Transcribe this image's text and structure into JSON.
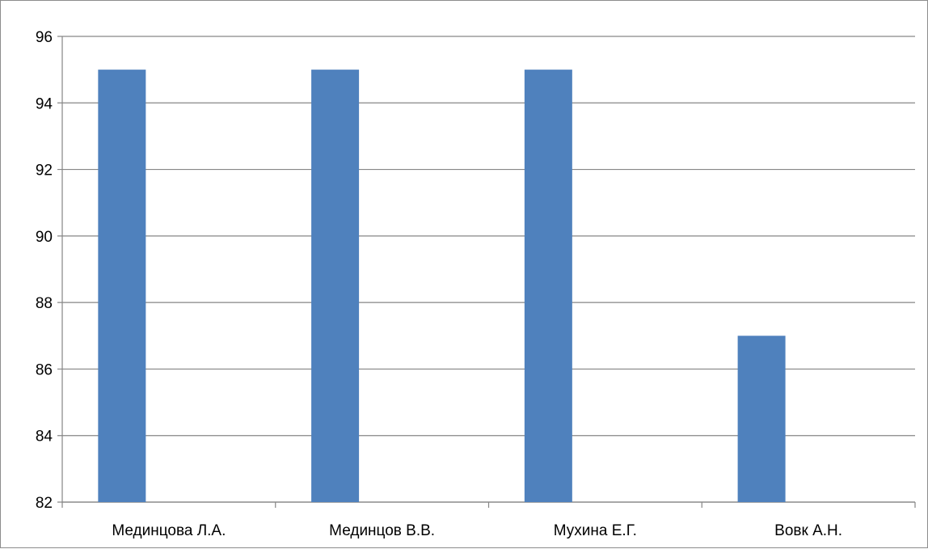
{
  "chart_data": {
    "type": "bar",
    "categories": [
      "Мединцова Л.А.",
      "Мединцов В.В.",
      "Мухина Е.Г.",
      "Вовк А.Н."
    ],
    "series": [
      {
        "values": [
          95,
          95,
          95,
          87
        ],
        "color": "#4F81BD"
      }
    ],
    "title": "",
    "xlabel": "",
    "ylabel": "",
    "ylim": [
      82,
      96
    ],
    "yticks": [
      82,
      84,
      86,
      88,
      90,
      92,
      94,
      96
    ],
    "grid": true,
    "legend": "none"
  }
}
